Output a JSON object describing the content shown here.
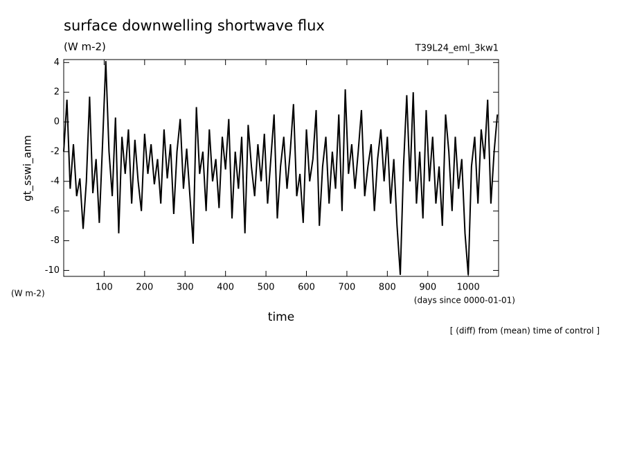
{
  "chart_data": {
    "type": "line",
    "title": "surface downwelling shortwave flux",
    "units_top": "(W m-2)",
    "run_label": "T39L24_eml_3kw1",
    "ylabel": "gt_sswi_anm",
    "units_left": "(W m-2)",
    "xlabel": "time",
    "xunits": "(days since 0000-01-01)",
    "note": "[ (diff) from (mean) time of control ]",
    "xlim": [
      0,
      1075
    ],
    "ylim": [
      -10.4,
      4.2
    ],
    "xticks": [
      100,
      200,
      300,
      400,
      500,
      600,
      700,
      800,
      900,
      1000
    ],
    "yticks": [
      -10,
      -8,
      -6,
      -4,
      -2,
      0,
      2,
      4
    ],
    "series": [
      {
        "color": "#000000",
        "x": [
          0,
          8,
          16,
          24,
          32,
          40,
          48,
          56,
          64,
          72,
          80,
          88,
          96,
          104,
          112,
          120,
          128,
          136,
          144,
          152,
          160,
          168,
          176,
          184,
          192,
          200,
          208,
          216,
          224,
          232,
          240,
          248,
          256,
          264,
          272,
          280,
          288,
          296,
          304,
          312,
          320,
          328,
          336,
          344,
          352,
          360,
          368,
          376,
          384,
          392,
          400,
          408,
          416,
          424,
          432,
          440,
          448,
          456,
          464,
          472,
          480,
          488,
          496,
          504,
          512,
          520,
          528,
          536,
          544,
          552,
          560,
          568,
          576,
          584,
          592,
          600,
          608,
          616,
          624,
          632,
          640,
          648,
          656,
          664,
          672,
          680,
          688,
          696,
          704,
          712,
          720,
          728,
          736,
          744,
          752,
          760,
          768,
          776,
          784,
          792,
          800,
          808,
          816,
          824,
          832,
          840,
          848,
          856,
          864,
          872,
          880,
          888,
          896,
          904,
          912,
          920,
          928,
          936,
          944,
          952,
          960,
          968,
          976,
          984,
          992,
          1000,
          1008,
          1016,
          1024,
          1032,
          1040,
          1048,
          1056,
          1064,
          1072
        ],
        "values": [
          -2,
          1.5,
          -4.5,
          -1.5,
          -5,
          -3.8,
          -7.2,
          -4,
          1.7,
          -4.8,
          -2.5,
          -6.8,
          -1.5,
          4.1,
          -2,
          -5,
          0.3,
          -7.5,
          -1,
          -3.5,
          -0.5,
          -5.5,
          -1.2,
          -4,
          -6,
          -0.8,
          -3.5,
          -1.5,
          -4.2,
          -2.5,
          -5.5,
          -0.5,
          -3.8,
          -1.5,
          -6.2,
          -2,
          0.2,
          -4.5,
          -1.8,
          -5,
          -8.2,
          1,
          -3.5,
          -2,
          -6,
          -0.5,
          -4,
          -2.5,
          -5.8,
          -1,
          -3.2,
          0.2,
          -6.5,
          -2,
          -4.5,
          -1,
          -7.5,
          -0.2,
          -3,
          -5,
          -1.5,
          -4,
          -0.8,
          -5.5,
          -2.5,
          0.5,
          -6.5,
          -3,
          -1,
          -4.5,
          -2,
          1.2,
          -5,
          -3.5,
          -6.8,
          -0.5,
          -4,
          -2.5,
          0.8,
          -7,
          -3,
          -1,
          -5.5,
          -2,
          -4.5,
          0.5,
          -6,
          2.2,
          -3.5,
          -1.5,
          -4.5,
          -2,
          0.8,
          -5,
          -3,
          -1.5,
          -6,
          -2.5,
          -0.5,
          -4,
          -1,
          -5.5,
          -2.5,
          -7,
          -10.3,
          -3,
          1.8,
          -4,
          2,
          -5.5,
          -2,
          -6.5,
          0.8,
          -4,
          -1,
          -5.5,
          -3,
          -7,
          0.5,
          -2,
          -6,
          -1,
          -4.5,
          -2.5,
          -7.5,
          -10.3,
          -3,
          -1,
          -5.5,
          -0.5,
          -2.5,
          1.5,
          -5.5,
          -2,
          0.5
        ]
      }
    ]
  }
}
